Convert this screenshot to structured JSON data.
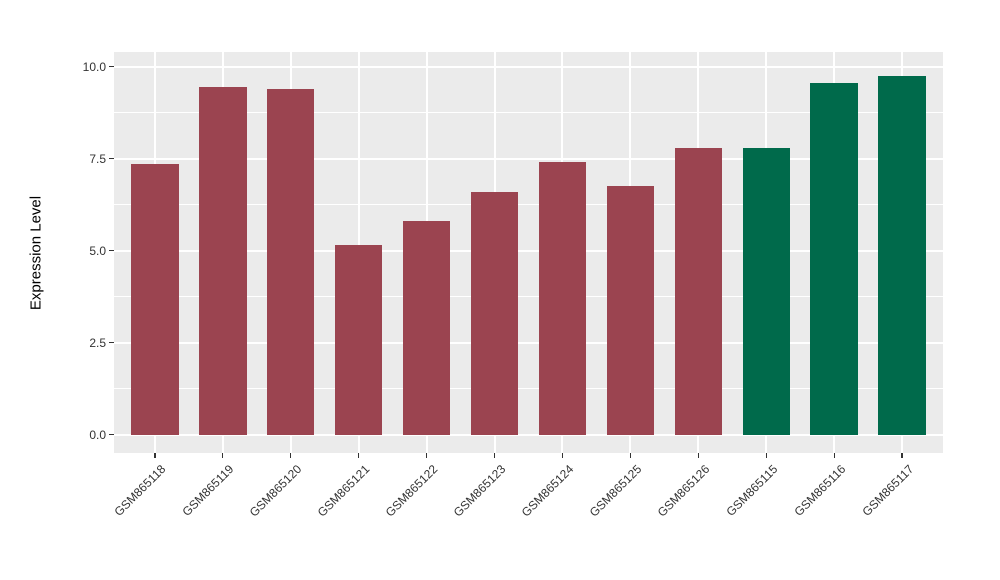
{
  "chart_data": {
    "type": "bar",
    "title": "",
    "xlabel": "",
    "ylabel": "Expression Level",
    "categories": [
      "GSM865118",
      "GSM865119",
      "GSM865120",
      "GSM865121",
      "GSM865122",
      "GSM865123",
      "GSM865124",
      "GSM865125",
      "GSM865126",
      "GSM865115",
      "GSM865116",
      "GSM865117"
    ],
    "values": [
      7.35,
      9.45,
      9.4,
      5.15,
      5.8,
      6.6,
      7.4,
      6.75,
      7.8,
      7.8,
      9.55,
      9.75
    ],
    "bar_colors": [
      "#9B4450",
      "#9B4450",
      "#9B4450",
      "#9B4450",
      "#9B4450",
      "#9B4450",
      "#9B4450",
      "#9B4450",
      "#9B4450",
      "#006A4B",
      "#006A4B",
      "#006A4B"
    ],
    "ylim": [
      -0.5,
      10.4
    ],
    "yticks": [
      0,
      2.5,
      5,
      7.5,
      10
    ],
    "ytick_labels": [
      "0.0",
      "2.5",
      "5.0",
      "7.5",
      "10.0"
    ],
    "minor_gridlines": [
      1.25,
      3.75,
      6.25,
      8.75
    ],
    "grid": "on",
    "legend_position": "none",
    "colors": {
      "panel_background": "#EBEBEB",
      "grid": "#FFFFFF",
      "bar_group_red": "#9B4450",
      "bar_group_green": "#006A4B",
      "tick_text": "#333333",
      "axis_title_text": "#000000",
      "figure_background": "#FFFFFF"
    }
  }
}
